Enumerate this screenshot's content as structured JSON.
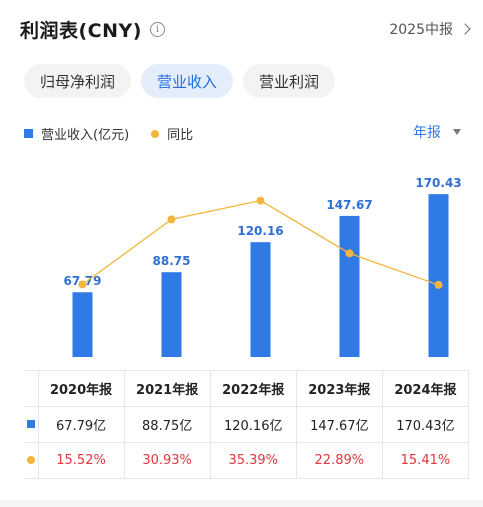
{
  "header": {
    "title": "利润表(CNY)",
    "info_icon": "info-icon",
    "period": "2025中报"
  },
  "tabs": [
    {
      "label": "归母净利润",
      "active": false
    },
    {
      "label": "营业收入",
      "active": true
    },
    {
      "label": "营业利润",
      "active": false
    }
  ],
  "legend": {
    "bar": "营业收入(亿元)",
    "line": "同比"
  },
  "frequency": "年报",
  "colors": {
    "bar": "#2f7ae5",
    "line": "#f5b53c",
    "growth_text": "#e0363d",
    "accent": "#1f6fe0"
  },
  "chart_data": {
    "type": "bar",
    "categories": [
      "2020年报",
      "2021年报",
      "2022年报",
      "2023年报",
      "2024年报"
    ],
    "series": [
      {
        "name": "营业收入(亿元)",
        "type": "bar",
        "values": [
          67.79,
          88.75,
          120.16,
          147.67,
          170.43
        ]
      },
      {
        "name": "同比",
        "type": "line",
        "values": [
          15.52,
          30.93,
          35.39,
          22.89,
          15.41
        ]
      }
    ],
    "bar_labels": [
      "67.79",
      "88.75",
      "120.16",
      "147.67",
      "170.43"
    ],
    "ylim": [
      0,
      180
    ],
    "line_ylim": [
      0,
      45
    ],
    "grid": false,
    "legend_position": "top-left"
  },
  "table": {
    "headers": [
      "2020年报",
      "2021年报",
      "2022年报",
      "2023年报",
      "2024年报"
    ],
    "values": [
      "67.79亿",
      "88.75亿",
      "120.16亿",
      "147.67亿",
      "170.43亿"
    ],
    "growth": [
      "15.52%",
      "30.93%",
      "35.39%",
      "22.89%",
      "15.41%"
    ]
  }
}
